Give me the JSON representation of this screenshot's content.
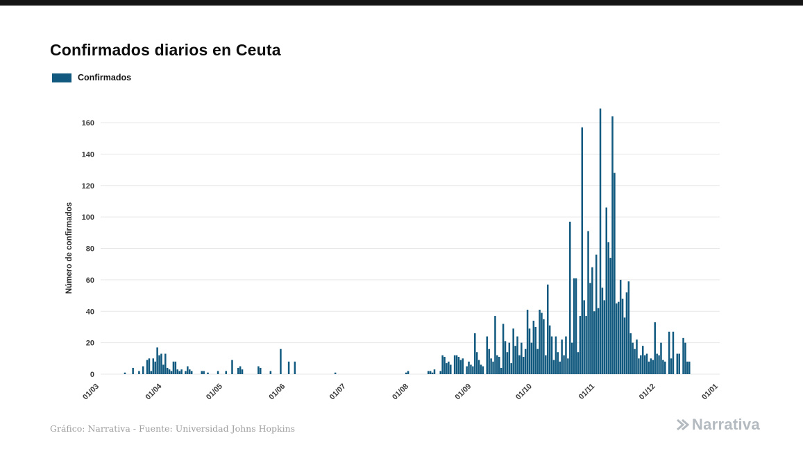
{
  "header": {
    "title": "Confirmados diarios en Ceuta"
  },
  "legend": {
    "label": "Confirmados"
  },
  "footer": {
    "credit": "Gráfico: Narrativa - Fuente: Universidad Johns Hopkins",
    "brand": "Narrativa"
  },
  "chart_data": {
    "type": "bar",
    "title": "Confirmados diarios en Ceuta",
    "ylabel": "Número de confirmados",
    "xlabel": "",
    "color": "#11597e",
    "grid": "horizontal",
    "legend_position": "top-left",
    "ylim": [
      0,
      160
    ],
    "yticks": [
      0,
      20,
      40,
      60,
      80,
      100,
      120,
      140,
      160
    ],
    "xticks": [
      "01/03",
      "01/04",
      "01/05",
      "01/06",
      "01/07",
      "01/08",
      "01/09",
      "01/10",
      "01/11",
      "01/12",
      "01/01"
    ],
    "xtick_offsets": [
      0,
      31,
      61,
      92,
      122,
      153,
      184,
      214,
      245,
      275,
      306
    ],
    "values": [
      0,
      0,
      0,
      0,
      0,
      0,
      0,
      0,
      0,
      0,
      0,
      0,
      1,
      0,
      0,
      0,
      4,
      0,
      0,
      2,
      0,
      5,
      0,
      9,
      10,
      2,
      10,
      8,
      17,
      12,
      13,
      6,
      13,
      4,
      3,
      2,
      8,
      8,
      3,
      2,
      3,
      0,
      2,
      5,
      3,
      2,
      0,
      0,
      0,
      0,
      2,
      2,
      0,
      1,
      0,
      0,
      0,
      0,
      2,
      0,
      0,
      0,
      2,
      0,
      0,
      9,
      0,
      0,
      4,
      5,
      3,
      0,
      0,
      0,
      0,
      0,
      0,
      0,
      5,
      4,
      0,
      0,
      0,
      0,
      2,
      0,
      0,
      0,
      0,
      16,
      0,
      0,
      0,
      8,
      0,
      0,
      8,
      0,
      0,
      0,
      0,
      0,
      0,
      0,
      0,
      0,
      0,
      0,
      0,
      0,
      0,
      0,
      0,
      0,
      0,
      0,
      1,
      0,
      0,
      0,
      0,
      0,
      0,
      0,
      0,
      0,
      0,
      0,
      0,
      0,
      0,
      0,
      0,
      0,
      0,
      0,
      0,
      0,
      0,
      0,
      0,
      0,
      0,
      0,
      0,
      0,
      0,
      0,
      0,
      0,
      0,
      1,
      2,
      0,
      0,
      0,
      0,
      0,
      0,
      0,
      0,
      0,
      2,
      2,
      1,
      3,
      0,
      0,
      2,
      12,
      11,
      7,
      8,
      6,
      0,
      12,
      12,
      11,
      9,
      10,
      0,
      5,
      8,
      6,
      5,
      26,
      14,
      9,
      6,
      5,
      0,
      24,
      16,
      10,
      8,
      37,
      12,
      11,
      4,
      32,
      21,
      14,
      20,
      7,
      29,
      18,
      24,
      12,
      20,
      11,
      16,
      41,
      29,
      20,
      34,
      30,
      16,
      41,
      39,
      35,
      12,
      57,
      31,
      24,
      9,
      24,
      14,
      8,
      22,
      12,
      24,
      10,
      97,
      20,
      61,
      61,
      14,
      37,
      157,
      47,
      37,
      91,
      58,
      68,
      40,
      76,
      42,
      169,
      55,
      47,
      106,
      84,
      74,
      164,
      128,
      45,
      46,
      60,
      48,
      36,
      52,
      59,
      26,
      20,
      16,
      22,
      10,
      12,
      18,
      12,
      13,
      8,
      10,
      9,
      33,
      13,
      12,
      20,
      9,
      8,
      0,
      27,
      10,
      27,
      0,
      13,
      13,
      0,
      23,
      20,
      8,
      8,
      0,
      0,
      0,
      0,
      0,
      0,
      0,
      0,
      0,
      0,
      0,
      0,
      0,
      0
    ]
  }
}
